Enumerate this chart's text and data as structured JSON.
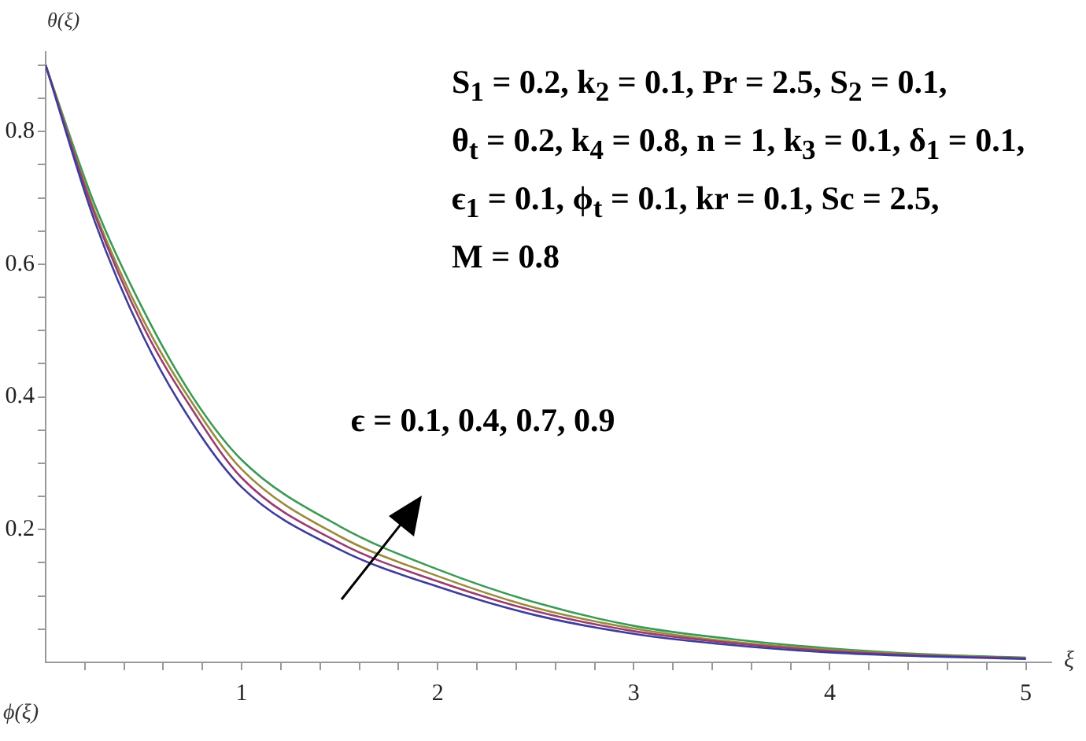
{
  "chart_data": {
    "type": "line",
    "xlabel": "ξ",
    "ylabel": "θ(ξ)",
    "annotations": [
      "S$_{1}$ = 0.2, k$_{2}$ = 0.1, Pr = 2.5, S$_{2}$ = 0.1,",
      "θ$_{t}$ = 0.2, k$_{4}$ = 0.8, n = 1, k$_{3}$ = 0.1, δ$_{1}$ = 0.1,",
      "ϵ$_{1}$ = 0.1, ϕ$_{t}$ = 0.1, kr = 0.1, Sc = 2.5,",
      "M = 0.8",
      "ϵ = 0.1, 0.4, 0.7, 0.9",
      "ϕ(ξ)"
    ],
    "x": [
      0,
      0.25,
      0.5,
      0.75,
      1,
      1.5,
      2,
      2.5,
      3,
      3.5,
      4,
      4.5,
      5
    ],
    "series": [
      {
        "color": "#3f3d99",
        "values": [
          0.9,
          0.665,
          0.49,
          0.36,
          0.264,
          0.17,
          0.114,
          0.071,
          0.043,
          0.026,
          0.015,
          0.009,
          0.005
        ]
      },
      {
        "color": "#993d71",
        "values": [
          0.9,
          0.675,
          0.505,
          0.38,
          0.278,
          0.18,
          0.122,
          0.077,
          0.047,
          0.029,
          0.017,
          0.01,
          0.006
        ]
      },
      {
        "color": "#998b3d",
        "values": [
          0.9,
          0.68,
          0.515,
          0.39,
          0.291,
          0.19,
          0.13,
          0.082,
          0.051,
          0.031,
          0.019,
          0.011,
          0.006
        ]
      },
      {
        "color": "#3d9956",
        "values": [
          0.9,
          0.69,
          0.53,
          0.4,
          0.305,
          0.205,
          0.14,
          0.09,
          0.055,
          0.035,
          0.021,
          0.012,
          0.007
        ]
      }
    ],
    "xlim": [
      0,
      5.13
    ],
    "ylim": [
      0,
      0.92
    ],
    "xticks": [
      {
        "value": 0.2,
        "label": null
      },
      {
        "value": 0.4,
        "label": null
      },
      {
        "value": 0.6,
        "label": null
      },
      {
        "value": 0.8,
        "label": null
      },
      1,
      {
        "value": 1.2,
        "label": null
      },
      {
        "value": 1.4,
        "label": null
      },
      {
        "value": 1.6,
        "label": null
      },
      {
        "value": 1.8,
        "label": null
      },
      2,
      {
        "value": 2.2,
        "label": null
      },
      {
        "value": 2.4,
        "label": null
      },
      {
        "value": 2.6,
        "label": null
      },
      {
        "value": 2.8,
        "label": null
      },
      3,
      {
        "value": 3.2,
        "label": null
      },
      {
        "value": 3.4,
        "label": null
      },
      {
        "value": 3.6,
        "label": null
      },
      {
        "value": 3.8,
        "label": null
      },
      4,
      {
        "value": 4.2,
        "label": null
      },
      {
        "value": 4.4,
        "label": null
      },
      {
        "value": 4.6,
        "label": null
      },
      {
        "value": 4.8,
        "label": null
      },
      5
    ],
    "yticks": [
      {
        "value": 0.05,
        "label": null
      },
      {
        "value": 0.1,
        "label": null
      },
      {
        "value": 0.15,
        "label": null
      },
      0.2,
      {
        "value": 0.25,
        "label": null
      },
      {
        "value": 0.3,
        "label": null
      },
      {
        "value": 0.35,
        "label": null
      },
      0.4,
      {
        "value": 0.45,
        "label": null
      },
      {
        "value": 0.5,
        "label": null
      },
      {
        "value": 0.55,
        "label": null
      },
      0.6,
      {
        "value": 0.65,
        "label": null
      },
      {
        "value": 0.7,
        "label": null
      },
      {
        "value": 0.75,
        "label": null
      },
      0.8,
      {
        "value": 0.85,
        "label": null
      },
      {
        "value": 0.9,
        "label": null
      }
    ]
  }
}
